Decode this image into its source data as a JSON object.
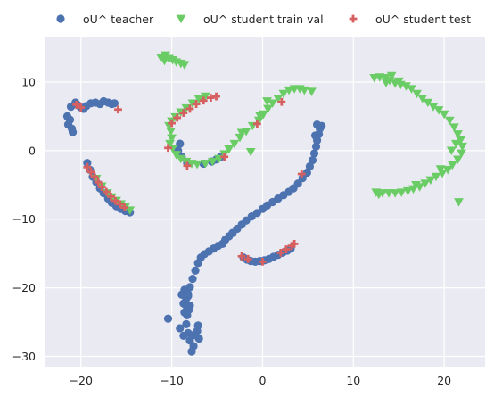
{
  "chart_data": {
    "type": "scatter",
    "title": "",
    "xlabel": "",
    "ylabel": "",
    "xlim": [
      -24,
      24.5
    ],
    "ylim": [
      -31.5,
      16.5
    ],
    "xticks": [
      -20,
      -10,
      0,
      10,
      20
    ],
    "yticks": [
      -30,
      -20,
      -10,
      0,
      10
    ],
    "xtick_labels": [
      "−20",
      "−10",
      "0",
      "10",
      "20"
    ],
    "ytick_labels": [
      "−30",
      "−20",
      "−10",
      "0",
      "10"
    ],
    "grid": true,
    "legend_position": "top",
    "background": "#eaeaf2",
    "series": [
      {
        "name": "oU^ teacher",
        "marker": "circle",
        "color": "#4c72b0",
        "points": [
          [
            -21.5,
            5.0
          ],
          [
            -21.4,
            3.8
          ],
          [
            -21.2,
            4.5
          ],
          [
            -21.0,
            3.2
          ],
          [
            -20.9,
            2.7
          ],
          [
            -21.1,
            6.4
          ],
          [
            -20.6,
            7.0
          ],
          [
            -20.3,
            6.6
          ],
          [
            -20.0,
            6.3
          ],
          [
            -19.7,
            6.1
          ],
          [
            -19.4,
            6.5
          ],
          [
            -18.9,
            6.9
          ],
          [
            -18.4,
            7.0
          ],
          [
            -17.9,
            6.8
          ],
          [
            -17.5,
            7.2
          ],
          [
            -17.0,
            7.0
          ],
          [
            -16.6,
            6.8
          ],
          [
            -16.3,
            6.9
          ],
          [
            -19.3,
            -1.8
          ],
          [
            -19.0,
            -2.8
          ],
          [
            -18.7,
            -3.8
          ],
          [
            -18.3,
            -4.6
          ],
          [
            -17.9,
            -5.5
          ],
          [
            -17.5,
            -6.2
          ],
          [
            -17.0,
            -7.0
          ],
          [
            -16.6,
            -7.6
          ],
          [
            -16.1,
            -8.1
          ],
          [
            -15.6,
            -8.5
          ],
          [
            -15.1,
            -8.8
          ],
          [
            -14.6,
            -9.0
          ],
          [
            -9.1,
            1.0
          ],
          [
            -9.3,
            0.0
          ],
          [
            -8.9,
            -0.9
          ],
          [
            -8.3,
            -1.8
          ],
          [
            -6.5,
            -1.9
          ],
          [
            -5.6,
            -1.6
          ],
          [
            -5.1,
            -1.3
          ],
          [
            -4.6,
            -0.9
          ],
          [
            -4.4,
            -13.6
          ],
          [
            -4.9,
            -13.9
          ],
          [
            -5.4,
            -14.3
          ],
          [
            -5.9,
            -14.7
          ],
          [
            -6.4,
            -15.1
          ],
          [
            -6.8,
            -15.6
          ],
          [
            -7.1,
            -16.4
          ],
          [
            -7.4,
            -17.5
          ],
          [
            -7.7,
            -18.7
          ],
          [
            -8.0,
            -19.9
          ],
          [
            -8.2,
            -21.2
          ],
          [
            -8.4,
            -22.6
          ],
          [
            -8.3,
            -24.0
          ],
          [
            -8.4,
            -25.3
          ],
          [
            -8.2,
            -26.6
          ],
          [
            -8.0,
            -27.7
          ],
          [
            -7.6,
            -28.5
          ],
          [
            -7.0,
            -27.4
          ],
          [
            -7.2,
            -26.3
          ],
          [
            -7.1,
            -25.5
          ],
          [
            -7.6,
            -26.9
          ],
          [
            -9.1,
            -25.9
          ],
          [
            -8.7,
            -27.0
          ],
          [
            -10.4,
            -24.5
          ],
          [
            -7.8,
            -29.3
          ],
          [
            -8.6,
            -20.3
          ],
          [
            -8.9,
            -21.0
          ],
          [
            -8.2,
            -20.9
          ],
          [
            -8.4,
            -21.6
          ],
          [
            -8.7,
            -22.3
          ],
          [
            -8.1,
            -23.2
          ],
          [
            -8.6,
            -23.6
          ],
          [
            -8.0,
            -22.6
          ],
          [
            -4.1,
            -13.0
          ],
          [
            -3.7,
            -12.5
          ],
          [
            -3.3,
            -12.0
          ],
          [
            -2.8,
            -11.4
          ],
          [
            -2.3,
            -10.8
          ],
          [
            -1.8,
            -10.2
          ],
          [
            -1.2,
            -9.6
          ],
          [
            -0.6,
            -9.1
          ],
          [
            0.0,
            -8.5
          ],
          [
            0.5,
            -8.0
          ],
          [
            1.1,
            -7.5
          ],
          [
            1.7,
            -7.0
          ],
          [
            2.3,
            -6.5
          ],
          [
            2.9,
            -6.0
          ],
          [
            3.4,
            -5.5
          ],
          [
            3.9,
            -4.8
          ],
          [
            4.4,
            -4.0
          ],
          [
            4.9,
            -3.2
          ],
          [
            5.2,
            -2.3
          ],
          [
            5.5,
            -1.4
          ],
          [
            5.7,
            -0.4
          ],
          [
            5.9,
            0.6
          ],
          [
            6.0,
            1.5
          ],
          [
            6.2,
            2.4
          ],
          [
            6.3,
            3.2
          ],
          [
            6.0,
            3.8
          ],
          [
            6.5,
            3.6
          ],
          [
            5.8,
            2.2
          ],
          [
            -2.1,
            -15.6
          ],
          [
            -1.7,
            -15.9
          ],
          [
            -1.3,
            -16.1
          ],
          [
            -0.8,
            -16.2
          ],
          [
            -0.3,
            -16.1
          ],
          [
            0.2,
            -16.0
          ],
          [
            0.7,
            -15.8
          ],
          [
            1.2,
            -15.5
          ],
          [
            1.7,
            -15.2
          ],
          [
            2.2,
            -14.9
          ],
          [
            2.7,
            -14.6
          ],
          [
            3.1,
            -14.3
          ]
        ]
      },
      {
        "name": "oU^ student train val",
        "marker": "triangle_down",
        "color": "#6acc64",
        "points": [
          [
            -11.2,
            13.6
          ],
          [
            -10.7,
            13.9
          ],
          [
            -10.3,
            13.4
          ],
          [
            -9.9,
            13.2
          ],
          [
            -9.5,
            12.9
          ],
          [
            -9.0,
            12.7
          ],
          [
            -8.6,
            12.5
          ],
          [
            -10.8,
            13.1
          ],
          [
            -10.1,
            2.8
          ],
          [
            -10.0,
            1.8
          ],
          [
            -10.2,
            1.0
          ],
          [
            -9.9,
            0.3
          ],
          [
            -9.5,
            -0.6
          ],
          [
            -9.0,
            -1.2
          ],
          [
            -8.4,
            -1.6
          ],
          [
            -7.8,
            -1.9
          ],
          [
            -7.2,
            -2.0
          ],
          [
            -6.3,
            -1.9
          ],
          [
            -5.5,
            -1.6
          ],
          [
            -10.3,
            3.6
          ],
          [
            -10.0,
            4.3
          ],
          [
            -9.6,
            4.9
          ],
          [
            -9.0,
            5.6
          ],
          [
            -8.4,
            6.2
          ],
          [
            -7.7,
            6.9
          ],
          [
            -7.0,
            7.5
          ],
          [
            -6.3,
            7.9
          ],
          [
            -4.8,
            -1.2
          ],
          [
            -4.2,
            -0.5
          ],
          [
            -3.7,
            0.2
          ],
          [
            -3.1,
            1.0
          ],
          [
            -2.5,
            1.9
          ],
          [
            -1.8,
            2.8
          ],
          [
            -1.1,
            3.6
          ],
          [
            -0.4,
            4.4
          ],
          [
            0.1,
            5.3
          ],
          [
            0.6,
            6.1
          ],
          [
            1.1,
            6.9
          ],
          [
            1.7,
            7.6
          ],
          [
            2.3,
            8.3
          ],
          [
            2.9,
            8.8
          ],
          [
            3.5,
            9.0
          ],
          [
            4.1,
            9.0
          ],
          [
            4.6,
            8.8
          ],
          [
            5.4,
            8.6
          ],
          [
            -1.3,
            -0.2
          ],
          [
            -2.3,
            2.6
          ],
          [
            -0.3,
            5.1
          ],
          [
            0.5,
            7.2
          ],
          [
            12.3,
            10.6
          ],
          [
            12.9,
            10.7
          ],
          [
            13.5,
            10.6
          ],
          [
            14.0,
            10.2
          ],
          [
            14.6,
            9.8
          ],
          [
            15.2,
            9.6
          ],
          [
            15.8,
            9.4
          ],
          [
            16.4,
            9.0
          ],
          [
            17.0,
            8.3
          ],
          [
            17.6,
            7.6
          ],
          [
            18.2,
            7.0
          ],
          [
            18.8,
            6.4
          ],
          [
            19.4,
            5.9
          ],
          [
            20.0,
            5.3
          ],
          [
            20.6,
            4.4
          ],
          [
            21.1,
            3.4
          ],
          [
            21.5,
            2.4
          ],
          [
            21.8,
            1.5
          ],
          [
            22.0,
            0.6
          ],
          [
            21.9,
            -0.4
          ],
          [
            21.5,
            -1.3
          ],
          [
            20.9,
            -2.1
          ],
          [
            20.4,
            -2.8
          ],
          [
            19.8,
            -3.3
          ],
          [
            19.1,
            -3.8
          ],
          [
            18.5,
            -4.3
          ],
          [
            17.9,
            -4.8
          ],
          [
            17.3,
            -5.3
          ],
          [
            16.6,
            -5.6
          ],
          [
            16.0,
            -5.9
          ],
          [
            15.3,
            -6.1
          ],
          [
            14.6,
            -6.2
          ],
          [
            13.9,
            -6.2
          ],
          [
            13.2,
            -6.2
          ],
          [
            12.5,
            -6.1
          ],
          [
            14.2,
            10.9
          ],
          [
            15.0,
            10.1
          ],
          [
            21.3,
            1.0
          ],
          [
            21.6,
            -7.5
          ],
          [
            13.6,
            9.9
          ],
          [
            19.6,
            -2.7
          ],
          [
            20.8,
            0.0
          ],
          [
            16.9,
            -5.0
          ],
          [
            12.8,
            -6.4
          ],
          [
            -17.1,
            -6.2
          ],
          [
            -16.6,
            -6.8
          ],
          [
            -16.1,
            -7.3
          ],
          [
            -15.6,
            -7.8
          ],
          [
            -15.1,
            -8.2
          ],
          [
            -14.6,
            -8.7
          ],
          [
            -18.3,
            -4.1
          ],
          [
            -17.7,
            -5.2
          ]
        ]
      },
      {
        "name": "oU^ student test",
        "marker": "plus",
        "color": "#d65f5f",
        "points": [
          [
            -20.5,
            6.7
          ],
          [
            -20.0,
            6.3
          ],
          [
            -15.9,
            6.0
          ],
          [
            -19.3,
            -2.4
          ],
          [
            -18.9,
            -3.1
          ],
          [
            -18.5,
            -3.8
          ],
          [
            -18.1,
            -4.6
          ],
          [
            -17.7,
            -5.3
          ],
          [
            -17.2,
            -6.0
          ],
          [
            -16.7,
            -6.7
          ],
          [
            -16.2,
            -7.3
          ],
          [
            -15.7,
            -7.8
          ],
          [
            -15.2,
            -8.3
          ],
          [
            -10.4,
            0.4
          ],
          [
            -8.3,
            -2.2
          ],
          [
            -4.2,
            -0.9
          ],
          [
            -10.0,
            4.0
          ],
          [
            -9.4,
            4.8
          ],
          [
            -8.7,
            5.5
          ],
          [
            -8.0,
            6.1
          ],
          [
            -7.3,
            6.8
          ],
          [
            -6.5,
            7.3
          ],
          [
            -5.7,
            7.7
          ],
          [
            -5.1,
            7.9
          ],
          [
            -0.6,
            3.9
          ],
          [
            2.1,
            7.1
          ],
          [
            4.3,
            -3.4
          ],
          [
            -2.3,
            -15.4
          ],
          [
            -1.6,
            -15.8
          ],
          [
            0.0,
            -16.2
          ],
          [
            2.0,
            -14.9
          ],
          [
            2.6,
            -14.4
          ],
          [
            3.2,
            -13.9
          ],
          [
            3.5,
            -13.6
          ]
        ]
      }
    ]
  }
}
